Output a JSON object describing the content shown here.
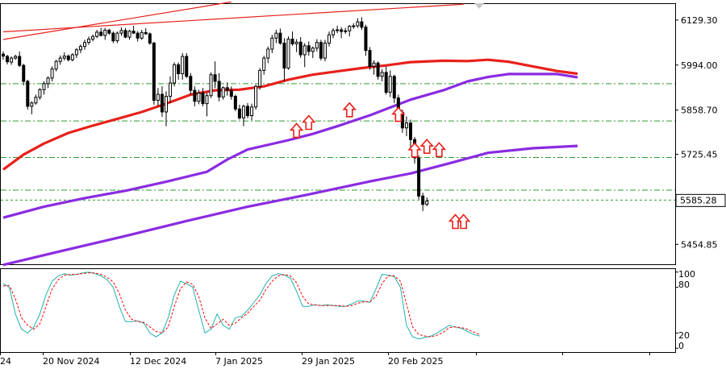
{
  "chart_data": {
    "type": "candlestick",
    "main_panel": {
      "ylim": [
        5395,
        6180
      ],
      "y_ticks": [
        "6129.30",
        "5994.00",
        "5858.70",
        "5725.45",
        "5454.85"
      ],
      "current_price": "5585.28",
      "dash_levels": [
        5938,
        5826,
        5716,
        5618
      ],
      "current_line": 5588,
      "moving_averages": [
        {
          "color": "#e8201a",
          "points": [
            [
              0,
              5680
            ],
            [
              5,
              5725
            ],
            [
              10,
              5758
            ],
            [
              16,
              5790
            ],
            [
              22,
              5812
            ],
            [
              28,
              5832
            ],
            [
              34,
              5853
            ],
            [
              40,
              5878
            ],
            [
              46,
              5905
            ],
            [
              52,
              5918
            ],
            [
              58,
              5920
            ],
            [
              64,
              5930
            ],
            [
              70,
              5950
            ],
            [
              76,
              5965
            ],
            [
              82,
              5975
            ],
            [
              88,
              5985
            ],
            [
              94,
              5993
            ],
            [
              100,
              6003
            ],
            [
              108,
              6007
            ],
            [
              114,
              6006
            ],
            [
              119,
              6010
            ],
            [
              124,
              6004
            ],
            [
              130,
              5990
            ],
            [
              136,
              5976
            ],
            [
              141,
              5968
            ]
          ]
        },
        {
          "color": "#8a2be2",
          "points": [
            [
              0,
              5535
            ],
            [
              10,
              5568
            ],
            [
              20,
              5594
            ],
            [
              30,
              5616
            ],
            [
              40,
              5643
            ],
            [
              50,
              5673
            ],
            [
              55,
              5710
            ],
            [
              60,
              5740
            ],
            [
              70,
              5768
            ],
            [
              76,
              5787
            ],
            [
              82,
              5810
            ],
            [
              90,
              5843
            ],
            [
              100,
              5890
            ],
            [
              108,
              5918
            ],
            [
              114,
              5945
            ],
            [
              119,
              5958
            ],
            [
              124,
              5967
            ],
            [
              130,
              5967
            ],
            [
              136,
              5967
            ],
            [
              141,
              5957
            ]
          ]
        },
        {
          "color": "#8a2be2",
          "points": [
            [
              0,
              5393
            ],
            [
              15,
              5437
            ],
            [
              30,
              5480
            ],
            [
              45,
              5525
            ],
            [
              60,
              5568
            ],
            [
              75,
              5605
            ],
            [
              90,
              5644
            ],
            [
              100,
              5668
            ],
            [
              110,
              5700
            ],
            [
              119,
              5730
            ],
            [
              130,
              5744
            ],
            [
              141,
              5751
            ]
          ]
        }
      ],
      "trendlines": [
        {
          "color": "#e8201a",
          "from": [
            0,
            6071
          ],
          "to": [
            56,
            6184
          ]
        },
        {
          "color": "#e8201a",
          "from": [
            0,
            6094
          ],
          "to": [
            113,
            6177
          ]
        }
      ],
      "candles": [
        [
          6027,
          6035,
          6010,
          6021
        ],
        [
          6020,
          6025,
          5996,
          6004
        ],
        [
          6003,
          6020,
          5995,
          6015
        ],
        [
          6015,
          6025,
          6010,
          6020
        ],
        [
          6020,
          6035,
          5988,
          5993
        ],
        [
          5993,
          5998,
          5933,
          5945
        ],
        [
          5945,
          5950,
          5860,
          5870
        ],
        [
          5870,
          5885,
          5846,
          5880
        ],
        [
          5880,
          5905,
          5875,
          5897
        ],
        [
          5897,
          5925,
          5890,
          5920
        ],
        [
          5920,
          5945,
          5905,
          5938
        ],
        [
          5938,
          5960,
          5925,
          5955
        ],
        [
          5955,
          5990,
          5945,
          5982
        ],
        [
          5982,
          6010,
          5975,
          6005
        ],
        [
          6005,
          6023,
          5995,
          6015
        ],
        [
          6015,
          6032,
          6008,
          6021
        ],
        [
          6021,
          6026,
          6005,
          6010
        ],
        [
          6010,
          6030,
          6005,
          6025
        ],
        [
          6025,
          6045,
          6015,
          6040
        ],
        [
          6040,
          6056,
          6030,
          6050
        ],
        [
          6050,
          6070,
          6040,
          6062
        ],
        [
          6062,
          6080,
          6055,
          6072
        ],
        [
          6072,
          6086,
          6065,
          6080
        ],
        [
          6080,
          6100,
          6075,
          6093
        ],
        [
          6093,
          6106,
          6080,
          6083
        ],
        [
          6083,
          6106,
          6070,
          6099
        ],
        [
          6099,
          6103,
          6085,
          6090
        ],
        [
          6090,
          6095,
          6060,
          6067
        ],
        [
          6067,
          6095,
          6060,
          6090
        ],
        [
          6090,
          6108,
          6082,
          6098
        ],
        [
          6098,
          6105,
          6075,
          6078
        ],
        [
          6078,
          6100,
          6070,
          6096
        ],
        [
          6096,
          6112,
          6088,
          6090
        ],
        [
          6090,
          6096,
          6065,
          6075
        ],
        [
          6075,
          6100,
          6070,
          6092
        ],
        [
          6092,
          6105,
          6085,
          6088
        ],
        [
          6088,
          6092,
          6055,
          6060
        ],
        [
          6060,
          6064,
          5875,
          5888
        ],
        [
          5888,
          5925,
          5870,
          5906
        ],
        [
          5906,
          5930,
          5838,
          5853
        ],
        [
          5853,
          5915,
          5810,
          5900
        ],
        [
          5900,
          5960,
          5880,
          5940
        ],
        [
          5940,
          6002,
          5930,
          5995
        ],
        [
          5995,
          6002,
          5950,
          5968
        ],
        [
          5968,
          6030,
          5950,
          6020
        ],
        [
          6020,
          6030,
          5955,
          5960
        ],
        [
          5960,
          5970,
          5905,
          5918
        ],
        [
          5918,
          5930,
          5870,
          5885
        ],
        [
          5885,
          5920,
          5876,
          5910
        ],
        [
          5910,
          5925,
          5870,
          5878
        ],
        [
          5878,
          5910,
          5840,
          5902
        ],
        [
          5902,
          5972,
          5895,
          5965
        ],
        [
          5965,
          6005,
          5925,
          5945
        ],
        [
          5945,
          5970,
          5885,
          5898
        ],
        [
          5898,
          5930,
          5890,
          5926
        ],
        [
          5926,
          5942,
          5902,
          5918
        ],
        [
          5918,
          5930,
          5890,
          5900
        ],
        [
          5900,
          5905,
          5855,
          5862
        ],
        [
          5862,
          5875,
          5830,
          5835
        ],
        [
          5835,
          5875,
          5810,
          5870
        ],
        [
          5870,
          5880,
          5834,
          5842
        ],
        [
          5842,
          5878,
          5828,
          5868
        ],
        [
          5868,
          5935,
          5860,
          5930
        ],
        [
          5930,
          5985,
          5920,
          5978
        ],
        [
          5978,
          6022,
          5965,
          6015
        ],
        [
          6015,
          6050,
          6000,
          6042
        ],
        [
          6042,
          6085,
          6030,
          6075
        ],
        [
          6075,
          6100,
          6060,
          6090
        ],
        [
          6090,
          6104,
          6055,
          6060
        ],
        [
          6060,
          6075,
          5945,
          5985
        ],
        [
          5985,
          6080,
          5980,
          6072
        ],
        [
          6072,
          6095,
          6052,
          6058
        ],
        [
          6058,
          6072,
          6033,
          6063
        ],
        [
          6063,
          6078,
          6016,
          6025
        ],
        [
          6025,
          6060,
          5988,
          6052
        ],
        [
          6052,
          6065,
          6022,
          6035
        ],
        [
          6035,
          6050,
          6015,
          6045
        ],
        [
          6045,
          6072,
          6035,
          6062
        ],
        [
          6062,
          6070,
          6008,
          6015
        ],
        [
          6015,
          6070,
          6005,
          6060
        ],
        [
          6060,
          6095,
          6050,
          6085
        ],
        [
          6085,
          6105,
          6075,
          6098
        ],
        [
          6098,
          6112,
          6090,
          6100
        ],
        [
          6100,
          6108,
          6075,
          6095
        ],
        [
          6095,
          6106,
          6088,
          6097
        ],
        [
          6097,
          6114,
          6080,
          6111
        ],
        [
          6111,
          6120,
          6103,
          6112
        ],
        [
          6112,
          6135,
          6106,
          6124
        ],
        [
          6124,
          6138,
          6100,
          6108
        ],
        [
          6108,
          6115,
          6022,
          6038
        ],
        [
          6038,
          6048,
          5980,
          5990
        ],
        [
          5990,
          6008,
          5965,
          6000
        ],
        [
          6000,
          6005,
          5950,
          5960
        ],
        [
          5960,
          5982,
          5945,
          5972
        ],
        [
          5972,
          5990,
          5905,
          5912
        ],
        [
          5912,
          5978,
          5898,
          5960
        ],
        [
          5960,
          5965,
          5880,
          5895
        ],
        [
          5895,
          5905,
          5835,
          5852
        ],
        [
          5852,
          5860,
          5790,
          5805
        ],
        [
          5805,
          5840,
          5780,
          5820
        ],
        [
          5820,
          5830,
          5745,
          5770
        ],
        [
          5770,
          5778,
          5698,
          5715
        ],
        [
          5715,
          5722,
          5590,
          5600
        ],
        [
          5600,
          5610,
          5555,
          5575
        ],
        [
          5575,
          5596,
          5570,
          5585
        ]
      ],
      "up_arrows": [
        [
          72,
          5818
        ],
        [
          75,
          5842
        ],
        [
          85,
          5880
        ],
        [
          97,
          5866
        ],
        [
          101,
          5759
        ],
        [
          104,
          5770
        ],
        [
          107,
          5760
        ],
        [
          111,
          5544
        ],
        [
          113,
          5544
        ]
      ]
    },
    "oscillator_panel": {
      "ylim": [
        -5,
        105
      ],
      "y_ticks": [
        "100",
        "80",
        "20",
        "0"
      ],
      "main_line": {
        "color": "#20b2aa",
        "values": [
          85,
          80,
          45,
          25,
          20,
          28,
          45,
          70,
          88,
          95,
          98,
          96,
          97,
          99,
          100,
          98,
          95,
          90,
          80,
          55,
          35,
          35,
          36,
          33,
          20,
          15,
          20,
          40,
          70,
          88,
          85,
          80,
          50,
          20,
          25,
          45,
          30,
          25,
          40,
          42,
          50,
          60,
          70,
          85,
          95,
          98,
          96,
          92,
          75,
          55,
          55,
          57,
          56,
          57,
          56,
          55,
          55,
          58,
          62,
          62,
          60,
          78,
          97,
          96,
          94,
          80,
          30,
          15,
          12,
          14,
          16,
          20,
          25,
          30,
          28,
          26,
          22,
          18,
          16
        ]
      },
      "signal_line": {
        "color": "#ff0000",
        "values": [
          82,
          82,
          65,
          40,
          30,
          25,
          32,
          55,
          78,
          90,
          96,
          97,
          97,
          98,
          99,
          99,
          97,
          93,
          87,
          72,
          50,
          38,
          35,
          34,
          28,
          22,
          20,
          28,
          55,
          78,
          87,
          84,
          68,
          40,
          26,
          32,
          38,
          30,
          33,
          40,
          46,
          55,
          63,
          77,
          88,
          95,
          97,
          95,
          86,
          68,
          58,
          57,
          56,
          56,
          56,
          56,
          55,
          56,
          59,
          61,
          61,
          68,
          85,
          95,
          95,
          88,
          58,
          28,
          18,
          16,
          15,
          17,
          21,
          27,
          28,
          27,
          25,
          21,
          18
        ]
      }
    },
    "x_tick_labels": [
      "24",
      "20 Nov 2024",
      "12 Dec 2024",
      "7 Jan 2025",
      "29 Jan 2025",
      "20 Feb 2025"
    ],
    "colors": {
      "bull": "#ffffff",
      "bear": "#000000",
      "grid_dash": "#2e9b2e",
      "arrow": "#e8201a",
      "axis": "#000000"
    }
  }
}
